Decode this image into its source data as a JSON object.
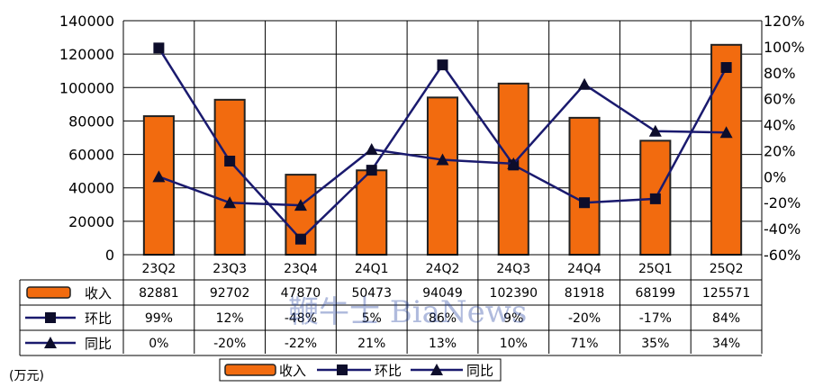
{
  "chart_data": {
    "type": "bar",
    "categories": [
      "23Q2",
      "23Q3",
      "23Q4",
      "24Q1",
      "24Q2",
      "24Q3",
      "24Q4",
      "25Q1",
      "25Q2"
    ],
    "unit_label": "(万元)",
    "y_left": {
      "min": 0,
      "max": 140000,
      "step": 20000,
      "ticks": [
        "0",
        "20000",
        "40000",
        "60000",
        "80000",
        "100000",
        "120000",
        "140000"
      ]
    },
    "y_right": {
      "min": -60,
      "max": 120,
      "step": 20,
      "ticks": [
        "-60%",
        "-40%",
        "-20%",
        "0%",
        "20%",
        "40%",
        "60%",
        "80%",
        "100%",
        "120%"
      ]
    },
    "series": [
      {
        "name": "收入",
        "type": "bar",
        "axis": "left",
        "values": [
          82881,
          92702,
          47870,
          50473,
          94049,
          102390,
          81918,
          68199,
          125571
        ],
        "labels": [
          "82881",
          "92702",
          "47870",
          "50473",
          "94049",
          "102390",
          "81918",
          "68199",
          "125571"
        ]
      },
      {
        "name": "环比",
        "type": "line",
        "marker": "square",
        "axis": "right",
        "values": [
          99,
          12,
          -48,
          5,
          86,
          9,
          -20,
          -17,
          84
        ],
        "labels": [
          "99%",
          "12%",
          "-48%",
          "5%",
          "86%",
          "9%",
          "-20%",
          "-17%",
          "84%"
        ]
      },
      {
        "name": "同比",
        "type": "line",
        "marker": "triangle",
        "axis": "right",
        "values": [
          0,
          -20,
          -22,
          21,
          13,
          10,
          71,
          35,
          34
        ],
        "labels": [
          "0%",
          "-20%",
          "-22%",
          "21%",
          "13%",
          "10%",
          "71%",
          "35%",
          "34%"
        ]
      }
    ],
    "colors": {
      "bar": "#f26b0f",
      "bar_edge": "#222222",
      "line": "#1a1a6e",
      "marker": "#0d0d2b"
    },
    "legend": {
      "position": "bottom-center",
      "items": [
        "收入",
        "环比",
        "同比"
      ]
    },
    "watermark": "鞭牛士 BiaNews"
  }
}
